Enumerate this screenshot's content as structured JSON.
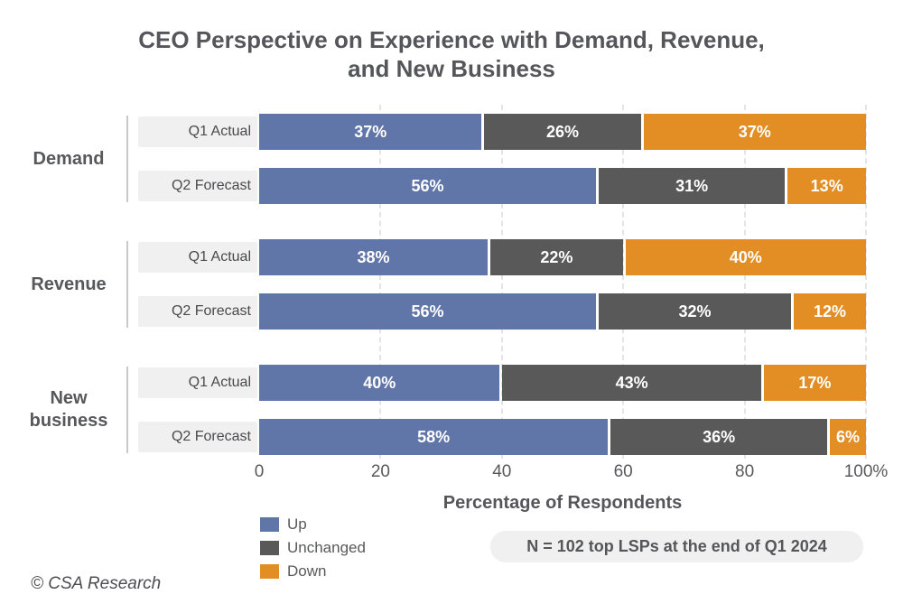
{
  "title": {
    "line1": "CEO Perspective on Experience with Demand, Revenue,",
    "line2": "and New Business"
  },
  "colors": {
    "up": "#6076a8",
    "unchanged": "#595959",
    "down": "#e28e24",
    "label_box_bg": "#f0f0f0",
    "text_dark": "#55565a"
  },
  "axis": {
    "label": "Percentage of Respondents",
    "ticks": [
      "0",
      "20",
      "40",
      "60",
      "80",
      "100%"
    ]
  },
  "legend": {
    "items": [
      {
        "label": "Up",
        "color_key": "up"
      },
      {
        "label": "Unchanged",
        "color_key": "unchanged"
      },
      {
        "label": "Down",
        "color_key": "down"
      }
    ]
  },
  "note": "N = 102 top LSPs at the end of Q1 2024",
  "footer": "© CSA Research",
  "chart_data": {
    "type": "bar",
    "orientation": "horizontal",
    "stacked": true,
    "unit": "%",
    "title": "CEO Perspective on Experience with Demand, Revenue, and New Business",
    "xlabel": "Percentage of Respondents",
    "xlim": [
      0,
      100
    ],
    "x_ticks": [
      "0",
      "20",
      "40",
      "60",
      "80",
      "100%"
    ],
    "grid": "vertical-dashed",
    "legend_position": "bottom-left",
    "series_names": [
      "Up",
      "Unchanged",
      "Down"
    ],
    "groups": [
      {
        "label": "Demand",
        "rows": [
          {
            "label": "Q1 Actual",
            "values": {
              "Up": 37,
              "Unchanged": 26,
              "Down": 37
            }
          },
          {
            "label": "Q2 Forecast",
            "values": {
              "Up": 56,
              "Unchanged": 31,
              "Down": 13
            }
          }
        ]
      },
      {
        "label": "Revenue",
        "rows": [
          {
            "label": "Q1 Actual",
            "values": {
              "Up": 38,
              "Unchanged": 22,
              "Down": 40
            }
          },
          {
            "label": "Q2 Forecast",
            "values": {
              "Up": 56,
              "Unchanged": 32,
              "Down": 12
            }
          }
        ]
      },
      {
        "label": "New business",
        "rows": [
          {
            "label": "Q1 Actual",
            "values": {
              "Up": 40,
              "Unchanged": 43,
              "Down": 17
            }
          },
          {
            "label": "Q2 Forecast",
            "values": {
              "Up": 58,
              "Unchanged": 36,
              "Down": 6
            }
          }
        ]
      }
    ],
    "annotation": "N = 102 top LSPs at the end of Q1 2024"
  }
}
